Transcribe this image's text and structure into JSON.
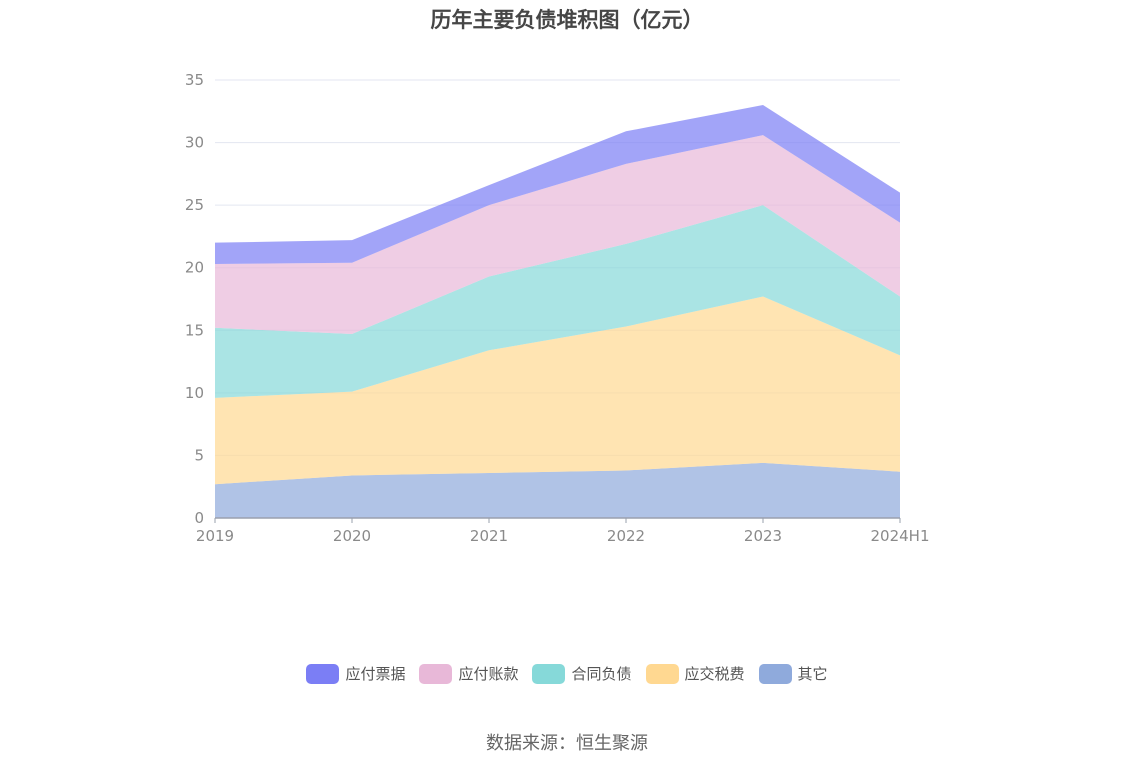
{
  "title": "历年主要负债堆积图（亿元）",
  "source": "数据来源：恒生聚源",
  "chart_data": {
    "type": "area",
    "stacked": true,
    "categories": [
      "2019",
      "2020",
      "2021",
      "2022",
      "2023",
      "2024H1"
    ],
    "ylim": [
      0,
      35
    ],
    "yticks": [
      0,
      5,
      10,
      15,
      20,
      25,
      30,
      35
    ],
    "grid": true,
    "legend_position": "bottom",
    "series": [
      {
        "name": "其它",
        "color": "#8faadc",
        "values": [
          2.7,
          3.4,
          3.6,
          3.8,
          4.4,
          3.7
        ]
      },
      {
        "name": "应交税费",
        "color": "#ffd891",
        "values": [
          6.9,
          6.7,
          9.8,
          11.5,
          13.3,
          9.3
        ]
      },
      {
        "name": "合同负债",
        "color": "#86d9d9",
        "values": [
          5.6,
          4.6,
          5.9,
          6.6,
          7.3,
          4.7
        ]
      },
      {
        "name": "应付账款",
        "color": "#e8b8d8",
        "values": [
          5.1,
          5.7,
          5.7,
          6.4,
          5.6,
          5.9
        ]
      },
      {
        "name": "应付票据",
        "color": "#7b7ef5",
        "values": [
          1.7,
          1.8,
          1.6,
          2.6,
          2.4,
          2.4
        ]
      }
    ],
    "legend_order": [
      "应付票据",
      "应付账款",
      "合同负债",
      "应交税费",
      "其它"
    ]
  }
}
